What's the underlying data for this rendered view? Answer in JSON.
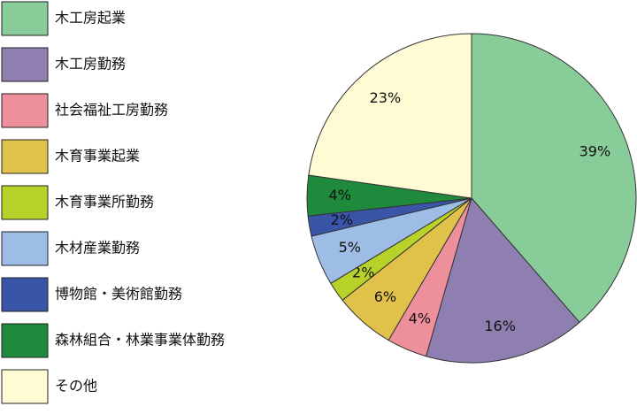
{
  "chart_data": {
    "type": "pie",
    "categories": [
      "木工房起業",
      "木工房勤務",
      "社会福祉工房勤務",
      "木育事業起業",
      "木育事業所勤務",
      "木材産業勤務",
      "博物館・美術館勤務",
      "森林組合・林業事業体勤務",
      "その他"
    ],
    "values": [
      39,
      16,
      4,
      6,
      2,
      5,
      2,
      4,
      23
    ],
    "value_labels": [
      "39%",
      "16%",
      "4%",
      "6%",
      "2%",
      "5%",
      "2%",
      "4%",
      "23%"
    ],
    "colors": [
      "#88cc99",
      "#8f7fb0",
      "#ee8f9c",
      "#e0c24a",
      "#b8d22a",
      "#9dbde6",
      "#3a55a8",
      "#1f8a3c",
      "#fffbd4"
    ]
  }
}
